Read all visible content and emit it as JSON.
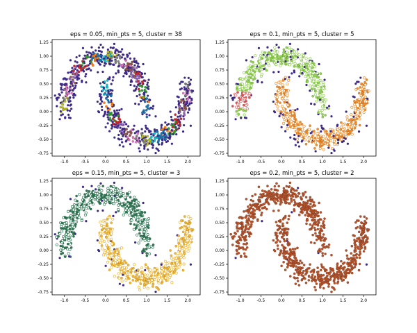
{
  "palette": {
    "noise": "#3d2a86",
    "tab10": [
      "#1f77b4",
      "#ff7f0e",
      "#2ca02c",
      "#d62728",
      "#9467bd",
      "#8c564b",
      "#e377c2",
      "#7f7f7f",
      "#bcbd22",
      "#17becf"
    ],
    "panel2_cluster": [
      "#8fd14f",
      "#f28e2b",
      "#e15759",
      "#76b7b2",
      "#59a14f"
    ],
    "panel3_cluster": [
      "#2f7a55",
      "#f2b632",
      "#b07aa1"
    ],
    "panel4_cluster": [
      "#b5532c",
      "#8c3b1a"
    ]
  },
  "chart_data": [
    {
      "type": "scatter",
      "title": "eps = 0.05, min_pts = 5, cluster = 38",
      "xlabel": "",
      "ylabel": "",
      "xlim": [
        -1.3,
        2.3
      ],
      "ylim": [
        -0.8,
        1.3
      ],
      "xticks": [
        "-1.0",
        "-0.5",
        "0.0",
        "0.5",
        "1.0",
        "1.5",
        "2.0"
      ],
      "yticks": [
        "-0.75",
        "-0.50",
        "-0.25",
        "0.00",
        "0.25",
        "0.50",
        "0.75",
        "1.00",
        "1.25"
      ],
      "xtick_values": [
        -1.0,
        -0.5,
        0.0,
        0.5,
        1.0,
        1.5,
        2.0
      ],
      "ytick_values": [
        -0.75,
        -0.5,
        -0.25,
        0.0,
        0.25,
        0.5,
        0.75,
        1.0,
        1.25
      ],
      "dataset": "two interleaving moons, ~1000 points, noise std ~0.1",
      "clusters": 38,
      "noise_fraction": 0.3,
      "grid": false
    },
    {
      "type": "scatter",
      "title": "eps = 0.1, min_pts = 5, cluster = 5",
      "xlabel": "",
      "ylabel": "",
      "xlim": [
        -1.3,
        2.3
      ],
      "ylim": [
        -0.8,
        1.3
      ],
      "xticks": [
        "-1.0",
        "-0.5",
        "0.0",
        "0.5",
        "1.0",
        "1.5",
        "2.0"
      ],
      "yticks": [
        "-0.75",
        "-0.50",
        "-0.25",
        "0.00",
        "0.25",
        "0.50",
        "0.75",
        "1.00",
        "1.25"
      ],
      "xtick_values": [
        -1.0,
        -0.5,
        0.0,
        0.5,
        1.0,
        1.5,
        2.0
      ],
      "ytick_values": [
        -0.75,
        -0.5,
        -0.25,
        0.0,
        0.25,
        0.5,
        0.75,
        1.0,
        1.25
      ],
      "dataset": "two interleaving moons, ~1000 points, noise std ~0.1",
      "clusters": 5,
      "noise_fraction": 0.06,
      "grid": false
    },
    {
      "type": "scatter",
      "title": "eps = 0.15, min_pts = 5, cluster = 3",
      "xlabel": "",
      "ylabel": "",
      "xlim": [
        -1.3,
        2.3
      ],
      "ylim": [
        -0.8,
        1.3
      ],
      "xticks": [
        "-1.0",
        "-0.5",
        "0.0",
        "0.5",
        "1.0",
        "1.5",
        "2.0"
      ],
      "yticks": [
        "-0.75",
        "-0.50",
        "-0.25",
        "0.00",
        "0.25",
        "0.50",
        "0.75",
        "1.00",
        "1.25"
      ],
      "xtick_values": [
        -1.0,
        -0.5,
        0.0,
        0.5,
        1.0,
        1.5,
        2.0
      ],
      "ytick_values": [
        -0.75,
        -0.5,
        -0.25,
        0.0,
        0.25,
        0.5,
        0.75,
        1.0,
        1.25
      ],
      "dataset": "two interleaving moons, ~1000 points, noise std ~0.1",
      "clusters": 3,
      "noise_fraction": 0.02,
      "grid": false
    },
    {
      "type": "scatter",
      "title": "eps = 0.2, min_pts = 5, cluster = 2",
      "xlabel": "",
      "ylabel": "",
      "xlim": [
        -1.3,
        2.3
      ],
      "ylim": [
        -0.8,
        1.3
      ],
      "xticks": [
        "-1.0",
        "-0.5",
        "0.0",
        "0.5",
        "1.0",
        "1.5",
        "2.0"
      ],
      "yticks": [
        "-0.75",
        "-0.50",
        "-0.25",
        "0.00",
        "0.25",
        "0.50",
        "0.75",
        "1.00",
        "1.25"
      ],
      "xtick_values": [
        -1.0,
        -0.5,
        0.0,
        0.5,
        1.0,
        1.5,
        2.0
      ],
      "ytick_values": [
        -0.75,
        -0.5,
        -0.25,
        0.0,
        0.25,
        0.5,
        0.75,
        1.0,
        1.25
      ],
      "dataset": "two interleaving moons, ~1000 points, noise std ~0.1",
      "clusters": 2,
      "noise_fraction": 0.005,
      "grid": false
    }
  ]
}
